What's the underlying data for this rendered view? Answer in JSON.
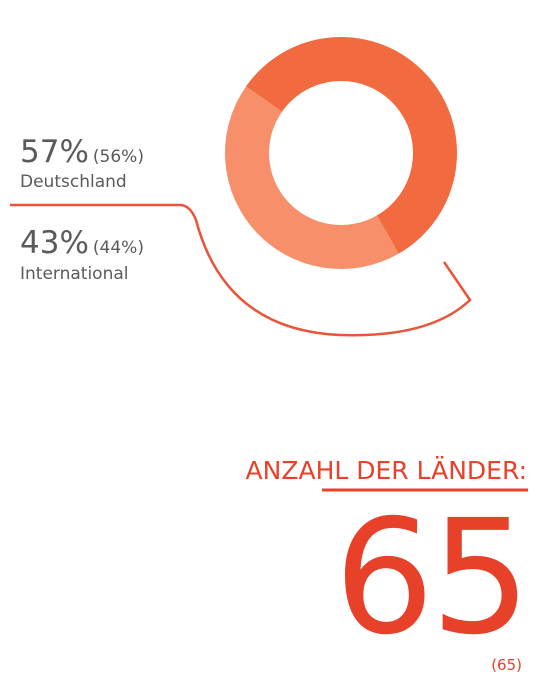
{
  "chart_data": {
    "type": "pie",
    "categories": [
      "Deutschland",
      "International"
    ],
    "values": [
      57,
      43
    ],
    "value_labels": [
      "57%",
      "43%"
    ],
    "previous_labels": [
      "(56%)",
      "(44%)"
    ],
    "colors": [
      "#f26a3f",
      "#f7906a"
    ]
  },
  "kpi": {
    "title": "ANZAHL DER LÄNDER:",
    "value": 65,
    "previous_label": "(65)"
  }
}
